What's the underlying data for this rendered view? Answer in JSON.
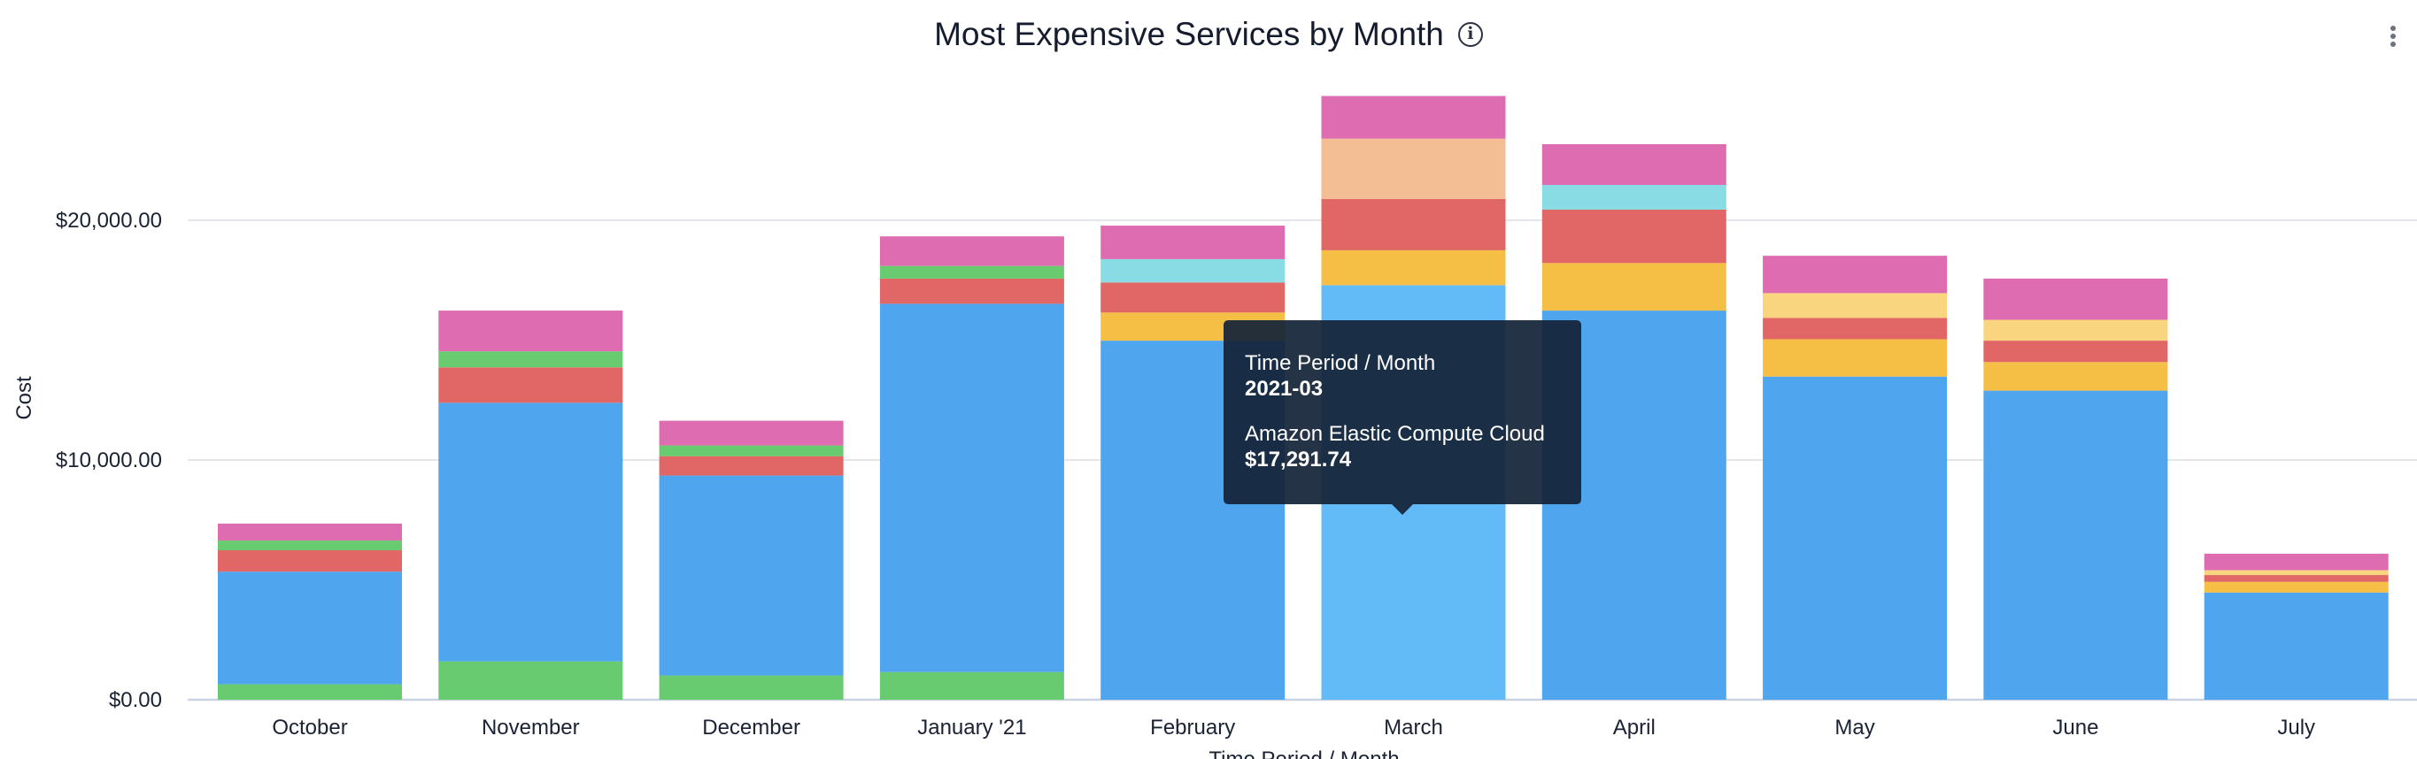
{
  "header": {
    "title": "Most Expensive Services by Month",
    "info_icon": "info-circle-icon",
    "menu_icon": "kebab-menu-icon"
  },
  "chart_data": {
    "type": "bar",
    "stacked": true,
    "title": "Most Expensive Services by Month",
    "xlabel": "Time Period / Month",
    "ylabel": "Cost",
    "ylim": [
      0,
      26000
    ],
    "yticks": [
      0,
      10000,
      20000
    ],
    "ytick_labels": [
      "$0.00",
      "$10,000.00",
      "$20,000.00"
    ],
    "grid": true,
    "categories": [
      "October",
      "November",
      "December",
      "January '21",
      "February",
      "March",
      "April",
      "May",
      "June",
      "July"
    ],
    "series": [
      {
        "color": "#68CB6F",
        "values": [
          648,
          1599,
          1012,
          1154,
          0,
          0,
          0,
          0,
          0,
          0
        ]
      },
      {
        "name": "Amazon Elastic Compute Cloud",
        "color": "#4FA5EE",
        "values": [
          4696,
          10788,
          8339,
          15362,
          14978,
          17291.74,
          16233,
          13480,
          12893,
          4473
        ]
      },
      {
        "color": "#F5BE45",
        "values": [
          0,
          0,
          0,
          0,
          1174,
          1457,
          1984,
          1558,
          1194,
          445
        ]
      },
      {
        "color": "#E06766",
        "values": [
          891,
          1478,
          810,
          1052,
          1255,
          2145,
          2226,
          891,
          891,
          283
        ]
      },
      {
        "color": "#8ADCE4",
        "values": [
          0,
          0,
          0,
          0,
          972,
          0,
          1032,
          0,
          0,
          0
        ]
      },
      {
        "color": "#F4BE94",
        "values": [
          0,
          0,
          0,
          0,
          0,
          2510,
          0,
          0,
          0,
          0
        ]
      },
      {
        "color": "#F8D57E",
        "values": [
          0,
          0,
          0,
          0,
          0,
          0,
          0,
          1032,
          870,
          202
        ]
      },
      {
        "color": "#68CB6F",
        "values": [
          405,
          668,
          445,
          526,
          0,
          0,
          0,
          0,
          0,
          0
        ]
      },
      {
        "color": "#DD6CB0",
        "values": [
          708,
          1700,
          1032,
          1235,
          1397,
          1781,
          1700,
          1558,
          1720,
          688
        ]
      }
    ],
    "highlight": {
      "category_index": 5,
      "series_index": 1,
      "color": "#62BBF7"
    }
  },
  "tooltip": {
    "dimension_label": "Time Period / Month",
    "dimension_value": "2021-03",
    "series_label": "Amazon Elastic Compute Cloud",
    "series_value": "$17,291.74"
  }
}
